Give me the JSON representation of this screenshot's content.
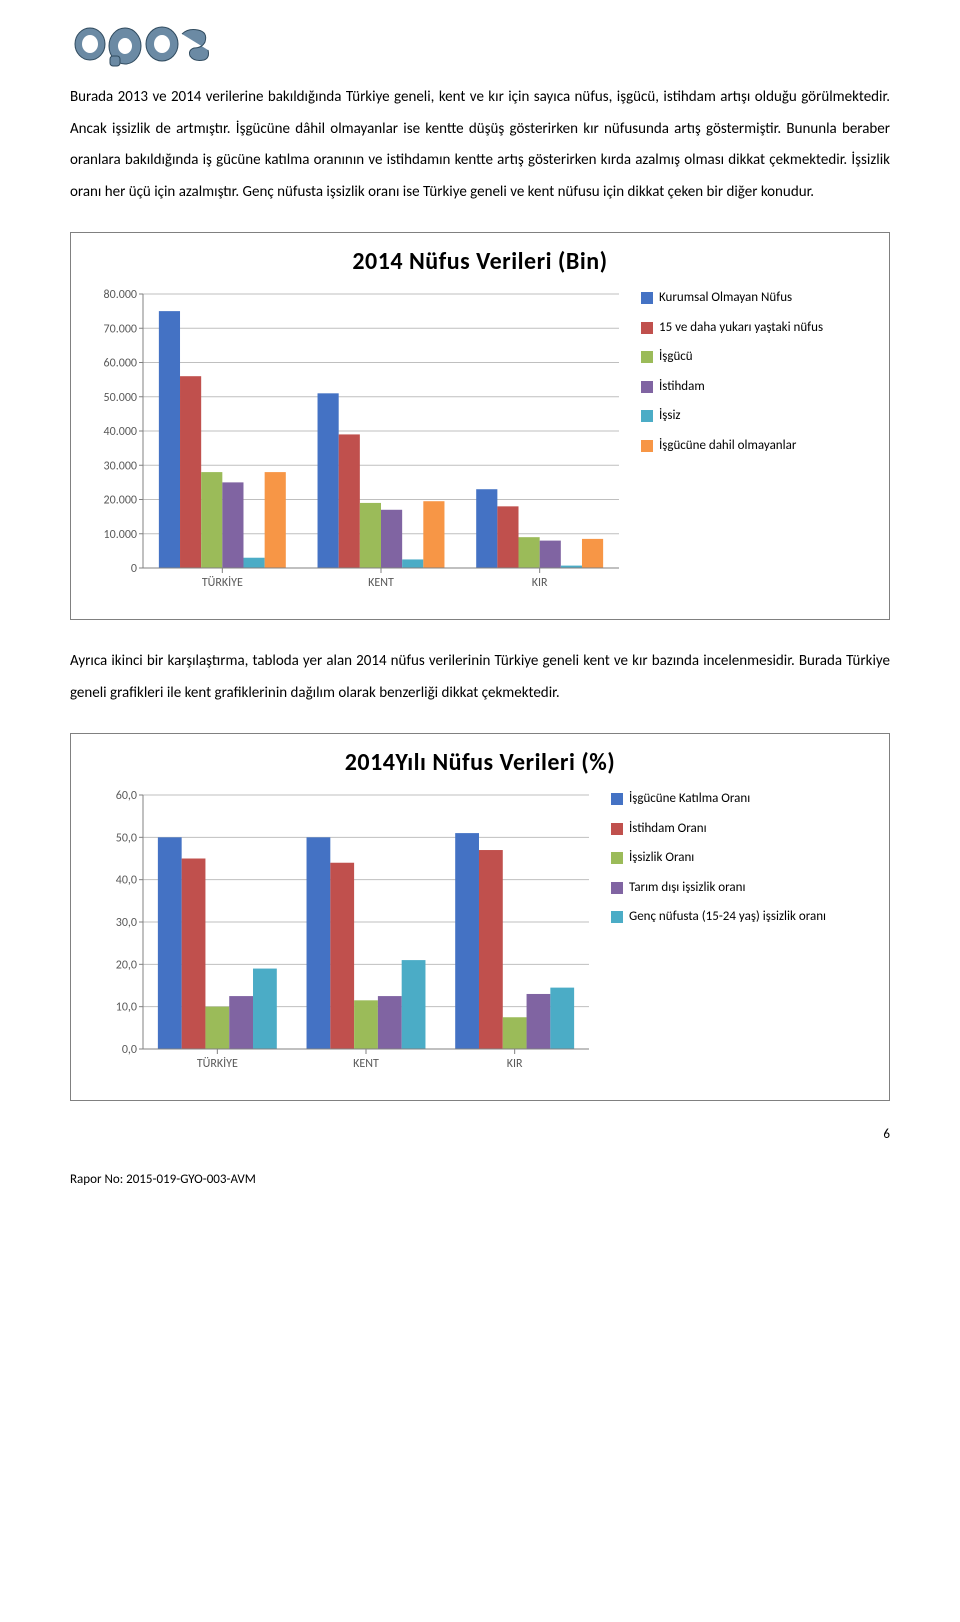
{
  "logo": {
    "text": "epos"
  },
  "para1": "Burada 2013 ve 2014 verilerine bakıldığında Türkiye geneli, kent ve kır için sayıca nüfus, işgücü, istihdam artışı olduğu görülmektedir. Ancak işsizlik de artmıştır. İşgücüne dâhil olmayanlar ise kentte düşüş gösterirken kır nüfusunda artış göstermiştir. Bununla beraber oranlara bakıldığında iş gücüne katılma oranının ve istihdamın kentte artış gösterirken kırda azalmış olması dikkat çekmektedir. İşsizlik oranı her üçü için azalmıştır. Genç nüfusta işsizlik oranı ise Türkiye geneli ve kent nüfusu için dikkat çeken bir diğer konudur.",
  "chart1": {
    "title": "2014 Nüfus Verileri (Bin)",
    "type": "bar",
    "categories": [
      "TÜRKİYE",
      "KENT",
      "KIR"
    ],
    "series": [
      {
        "label": "Kurumsal Olmayan Nüfus",
        "color": "#4472c4",
        "values": [
          75000,
          51000,
          23000
        ]
      },
      {
        "label": "15 ve daha yukarı yaştaki nüfus",
        "color": "#c0504d",
        "values": [
          56000,
          39000,
          18000
        ]
      },
      {
        "label": "İşgücü",
        "color": "#9bbb59",
        "values": [
          28000,
          19000,
          9000
        ]
      },
      {
        "label": "İstihdam",
        "color": "#8064a2",
        "values": [
          25000,
          17000,
          8000
        ]
      },
      {
        "label": "İşsiz",
        "color": "#4bacc6",
        "values": [
          3000,
          2500,
          700
        ]
      },
      {
        "label": "İşgücüne dahil olmayanlar",
        "color": "#f79646",
        "values": [
          28000,
          19500,
          8500
        ]
      }
    ],
    "ylim": [
      0,
      80000
    ],
    "ytick_step": 10000,
    "ytick_format": "thousands_dot",
    "plot_bg": "#ffffff",
    "grid_color": "#bfbfbf",
    "axis_color": "#808080",
    "tick_font_size": 12,
    "cat_font_size": 12,
    "bar_gap": 0
  },
  "para2": "Ayrıca ikinci bir karşılaştırma, tabloda yer alan 2014 nüfus verilerinin Türkiye geneli kent ve kır bazında incelenmesidir. Burada Türkiye geneli grafikleri ile kent grafiklerinin dağılım olarak benzerliği dikkat çekmektedir.",
  "chart2": {
    "title": "2014Yılı Nüfus Verileri (%)",
    "type": "bar",
    "categories": [
      "TÜRKİYE",
      "KENT",
      "KIR"
    ],
    "series": [
      {
        "label": "İşgücüne Katılma Oranı",
        "color": "#4472c4",
        "values": [
          50.0,
          50.0,
          51.0
        ]
      },
      {
        "label": "İstihdam Oranı",
        "color": "#c0504d",
        "values": [
          45.0,
          44.0,
          47.0
        ]
      },
      {
        "label": "İşsizlik Oranı",
        "color": "#9bbb59",
        "values": [
          10.0,
          11.5,
          7.5
        ]
      },
      {
        "label": "Tarım dışı işsizlik oranı",
        "color": "#8064a2",
        "values": [
          12.5,
          12.5,
          13.0
        ]
      },
      {
        "label": "Genç nüfusta (15-24 yaş) işsizlik oranı",
        "color": "#4bacc6",
        "values": [
          19.0,
          21.0,
          14.5
        ]
      }
    ],
    "ylim": [
      0,
      60
    ],
    "ytick_step": 10,
    "ytick_format": "comma_one",
    "plot_bg": "#ffffff",
    "grid_color": "#bfbfbf",
    "axis_color": "#808080",
    "tick_font_size": 12,
    "cat_font_size": 12,
    "bar_gap": 0
  },
  "footer": {
    "page_number": "6",
    "report_no": "Rapor No: 2015-019-GYO-003-AVM"
  }
}
